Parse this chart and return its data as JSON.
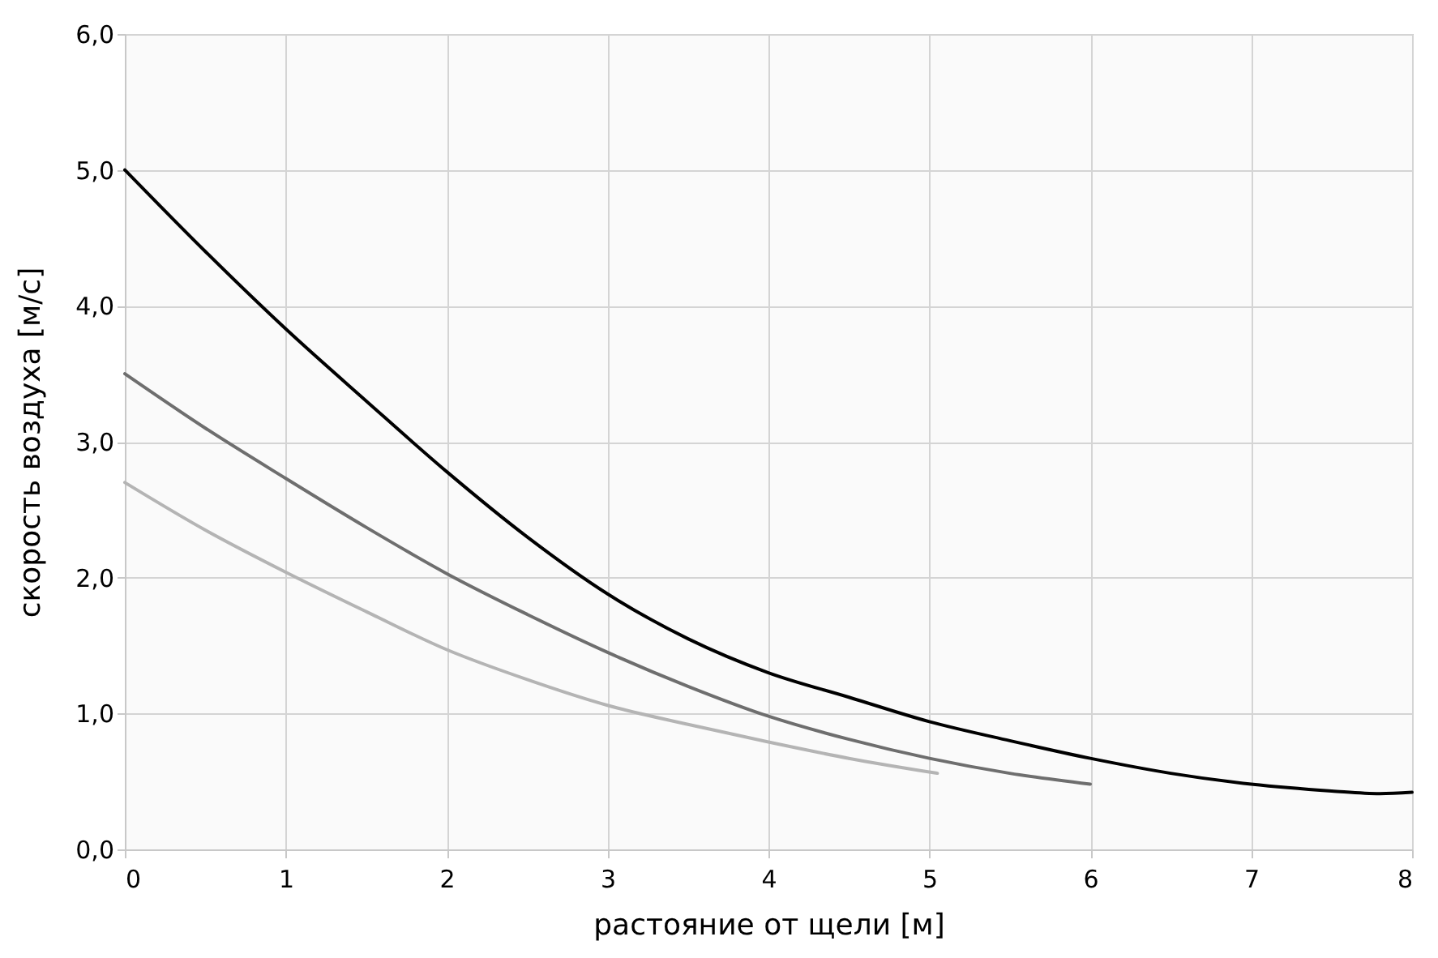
{
  "chart_data": {
    "type": "line",
    "xlabel": "растояние от щели [м]",
    "ylabel": "скорость воздуха [м/с]",
    "xlim": [
      0,
      8
    ],
    "xticks": [
      0,
      1,
      2,
      3,
      4,
      5,
      6,
      7,
      8
    ],
    "ylim": [
      0,
      6
    ],
    "yticks": [
      {
        "value": 0,
        "label": "0,0"
      },
      {
        "value": 1,
        "label": "1,0"
      },
      {
        "value": 2,
        "label": "2,0"
      },
      {
        "value": 3,
        "label": "3,0"
      },
      {
        "value": 4,
        "label": "4,0"
      },
      {
        "value": 5,
        "label": "5,0"
      },
      {
        "value": 6,
        "label": "6,0"
      }
    ],
    "grid": true,
    "line_style": "solid",
    "marker": "none",
    "series": [
      {
        "color": "#000000",
        "x": [
          0,
          0.5,
          1,
          1.5,
          2,
          2.5,
          3,
          3.5,
          4,
          4.5,
          5,
          5.5,
          6,
          6.5,
          7,
          7.5,
          7.8,
          8
        ],
        "values": [
          5.0,
          4.4,
          3.83,
          3.3,
          2.78,
          2.3,
          1.88,
          1.55,
          1.3,
          1.12,
          0.94,
          0.8,
          0.67,
          0.56,
          0.48,
          0.43,
          0.41,
          0.42
        ]
      },
      {
        "color": "#6e6e6e",
        "x": [
          0,
          0.5,
          1,
          1.5,
          2,
          2.5,
          3,
          3.5,
          4,
          4.5,
          5,
          5.5,
          6
        ],
        "values": [
          3.5,
          3.1,
          2.73,
          2.37,
          2.03,
          1.73,
          1.45,
          1.2,
          0.98,
          0.81,
          0.67,
          0.56,
          0.48
        ]
      },
      {
        "color": "#b4b4b4",
        "x": [
          0,
          0.5,
          1,
          1.5,
          2,
          2.5,
          3,
          3.5,
          4,
          4.5,
          5.05
        ],
        "values": [
          2.7,
          2.35,
          2.04,
          1.75,
          1.47,
          1.25,
          1.06,
          0.92,
          0.79,
          0.67,
          0.56
        ]
      }
    ]
  }
}
